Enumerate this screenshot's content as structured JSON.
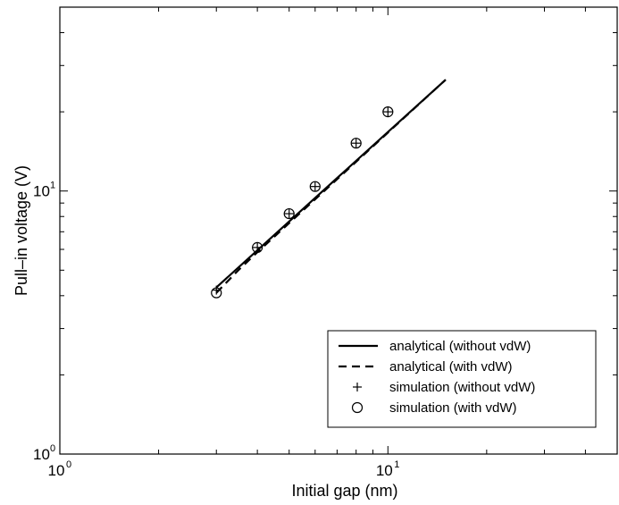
{
  "chart_data": {
    "type": "line",
    "title": "",
    "xlabel": "Initial gap (nm)",
    "ylabel": "Pull–in voltage (V)",
    "x_scale": "log",
    "y_scale": "log",
    "xlim": [
      1,
      50
    ],
    "ylim": [
      1,
      50
    ],
    "x_ticks": [
      {
        "base": "10",
        "exp": "0",
        "value": 1
      },
      {
        "base": "10",
        "exp": "1",
        "value": 10
      }
    ],
    "y_ticks": [
      {
        "base": "10",
        "exp": "0",
        "value": 1
      },
      {
        "base": "10",
        "exp": "1",
        "value": 10
      }
    ],
    "grid": false,
    "legend_position": "bottom-right",
    "series": [
      {
        "name": "analytical (without vdW)",
        "style": "solid-line",
        "color": "#000000",
        "x": [
          3,
          15
        ],
        "y": [
          4.3,
          26.5
        ]
      },
      {
        "name": "analytical (with vdW)",
        "style": "dashed-line",
        "color": "#000000",
        "x": [
          3,
          3.5,
          4,
          15
        ],
        "y": [
          4.1,
          5.0,
          5.85,
          26.5
        ]
      },
      {
        "name": "simulation (without vdW)",
        "style": "plus-marker",
        "color": "#000000",
        "x": [
          3,
          4,
          5,
          6,
          8,
          10
        ],
        "y": [
          4.2,
          6.1,
          8.2,
          10.4,
          15.2,
          20.0
        ]
      },
      {
        "name": "simulation (with vdW)",
        "style": "circle-marker",
        "color": "#000000",
        "x": [
          3,
          4,
          5,
          6,
          8,
          10
        ],
        "y": [
          4.1,
          6.1,
          8.2,
          10.4,
          15.2,
          20.0
        ]
      }
    ]
  }
}
